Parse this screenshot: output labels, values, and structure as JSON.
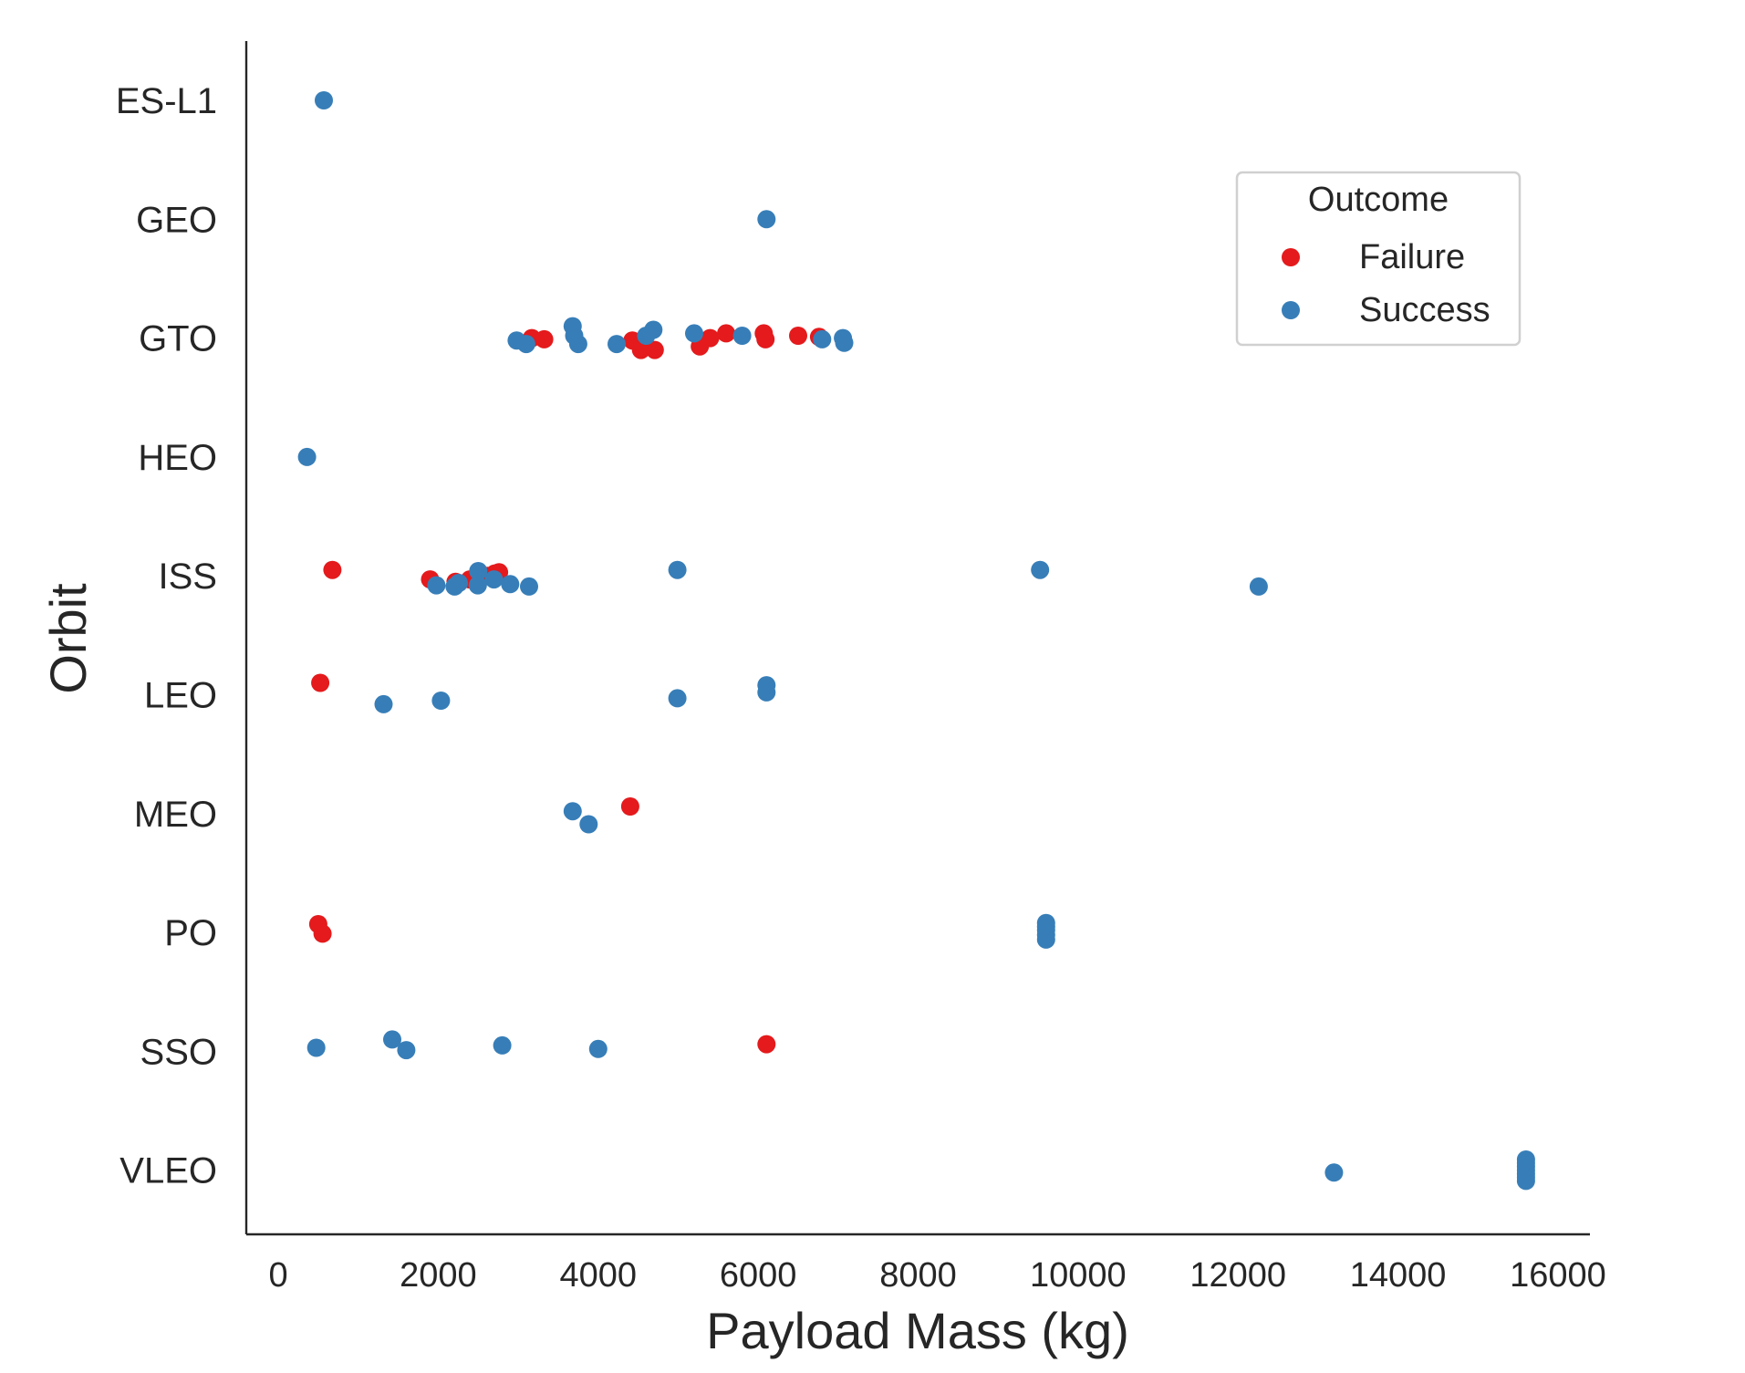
{
  "chart_data": {
    "type": "scatter",
    "xlabel": "Payload Mass (kg)",
    "ylabel": "Orbit",
    "xlim": [
      -400,
      16400
    ],
    "x_ticks": [
      0,
      2000,
      4000,
      6000,
      8000,
      10000,
      12000,
      14000,
      16000
    ],
    "categories": [
      "ES-L1",
      "GEO",
      "GTO",
      "HEO",
      "ISS",
      "LEO",
      "MEO",
      "PO",
      "SSO",
      "VLEO"
    ],
    "grid": false,
    "legend": {
      "title": "Outcome",
      "placement": "top-right",
      "entries": [
        {
          "label": "Failure",
          "color": "#e41a1c"
        },
        {
          "label": "Success",
          "color": "#377eb8"
        }
      ]
    },
    "series": [
      {
        "name": "Failure",
        "color": "#e41a1c",
        "points": [
          {
            "x": 3170,
            "y": "GTO",
            "jitter": 0.0
          },
          {
            "x": 3325,
            "y": "GTO",
            "jitter": 0.01
          },
          {
            "x": 4428,
            "y": "GTO",
            "jitter": 0.02
          },
          {
            "x": 4535,
            "y": "GTO",
            "jitter": 0.1
          },
          {
            "x": 4707,
            "y": "GTO",
            "jitter": 0.1
          },
          {
            "x": 5271,
            "y": "GTO",
            "jitter": 0.07
          },
          {
            "x": 5400,
            "y": "GTO",
            "jitter": 0.0
          },
          {
            "x": 5600,
            "y": "GTO",
            "jitter": -0.04
          },
          {
            "x": 6070,
            "y": "GTO",
            "jitter": -0.04
          },
          {
            "x": 6092,
            "y": "GTO",
            "jitter": 0.01
          },
          {
            "x": 6500,
            "y": "GTO",
            "jitter": -0.02
          },
          {
            "x": 6761,
            "y": "GTO",
            "jitter": -0.01
          },
          {
            "x": 677,
            "y": "ISS",
            "jitter": -0.05
          },
          {
            "x": 1898,
            "y": "ISS",
            "jitter": 0.03
          },
          {
            "x": 2216,
            "y": "ISS",
            "jitter": 0.05
          },
          {
            "x": 2395,
            "y": "ISS",
            "jitter": 0.03
          },
          {
            "x": 2490,
            "y": "ISS",
            "jitter": 0.07
          },
          {
            "x": 2617,
            "y": "ISS",
            "jitter": 0.0
          },
          {
            "x": 2708,
            "y": "ISS",
            "jitter": -0.02
          },
          {
            "x": 2760,
            "y": "ISS",
            "jitter": -0.03
          },
          {
            "x": 525,
            "y": "LEO",
            "jitter": -0.1
          },
          {
            "x": 4400,
            "y": "MEO",
            "jitter": -0.06
          },
          {
            "x": 500,
            "y": "PO",
            "jitter": -0.07
          },
          {
            "x": 553,
            "y": "PO",
            "jitter": 0.01
          },
          {
            "x": 6104,
            "y": "SSO",
            "jitter": -0.06
          }
        ]
      },
      {
        "name": "Success",
        "color": "#377eb8",
        "points": [
          {
            "x": 570,
            "y": "ES-L1",
            "jitter": 0.0
          },
          {
            "x": 6104,
            "y": "GEO",
            "jitter": 0.0
          },
          {
            "x": 2980,
            "y": "GTO",
            "jitter": 0.02
          },
          {
            "x": 3100,
            "y": "GTO",
            "jitter": 0.05
          },
          {
            "x": 3681,
            "y": "GTO",
            "jitter": -0.1
          },
          {
            "x": 3700,
            "y": "GTO",
            "jitter": -0.02
          },
          {
            "x": 3750,
            "y": "GTO",
            "jitter": 0.05
          },
          {
            "x": 4230,
            "y": "GTO",
            "jitter": 0.05
          },
          {
            "x": 4600,
            "y": "GTO",
            "jitter": -0.02
          },
          {
            "x": 4690,
            "y": "GTO",
            "jitter": -0.07
          },
          {
            "x": 5200,
            "y": "GTO",
            "jitter": -0.04
          },
          {
            "x": 5800,
            "y": "GTO",
            "jitter": -0.02
          },
          {
            "x": 6800,
            "y": "GTO",
            "jitter": 0.01
          },
          {
            "x": 7060,
            "y": "GTO",
            "jitter": 0.0
          },
          {
            "x": 7076,
            "y": "GTO",
            "jitter": 0.04
          },
          {
            "x": 360,
            "y": "HEO",
            "jitter": 0.0
          },
          {
            "x": 1977,
            "y": "ISS",
            "jitter": 0.08
          },
          {
            "x": 2205,
            "y": "ISS",
            "jitter": 0.09
          },
          {
            "x": 2257,
            "y": "ISS",
            "jitter": 0.06
          },
          {
            "x": 2500,
            "y": "ISS",
            "jitter": -0.04
          },
          {
            "x": 2495,
            "y": "ISS",
            "jitter": 0.08
          },
          {
            "x": 2697,
            "y": "ISS",
            "jitter": 0.03
          },
          {
            "x": 2900,
            "y": "ISS",
            "jitter": 0.07
          },
          {
            "x": 3136,
            "y": "ISS",
            "jitter": 0.09
          },
          {
            "x": 4990,
            "y": "ISS",
            "jitter": -0.05
          },
          {
            "x": 9525,
            "y": "ISS",
            "jitter": -0.05
          },
          {
            "x": 12259,
            "y": "ISS",
            "jitter": 0.09
          },
          {
            "x": 1316,
            "y": "LEO",
            "jitter": 0.08
          },
          {
            "x": 2034,
            "y": "LEO",
            "jitter": 0.05
          },
          {
            "x": 4990,
            "y": "LEO",
            "jitter": 0.03
          },
          {
            "x": 6104,
            "y": "LEO",
            "jitter": -0.08
          },
          {
            "x": 6104,
            "y": "LEO",
            "jitter": -0.02
          },
          {
            "x": 3681,
            "y": "MEO",
            "jitter": -0.02
          },
          {
            "x": 3880,
            "y": "MEO",
            "jitter": 0.09
          },
          {
            "x": 9600,
            "y": "PO",
            "jitter": -0.08
          },
          {
            "x": 9600,
            "y": "PO",
            "jitter": -0.05
          },
          {
            "x": 9600,
            "y": "PO",
            "jitter": -0.02
          },
          {
            "x": 9600,
            "y": "PO",
            "jitter": 0.02
          },
          {
            "x": 9600,
            "y": "PO",
            "jitter": 0.06
          },
          {
            "x": 475,
            "y": "SSO",
            "jitter": -0.03
          },
          {
            "x": 1425,
            "y": "SSO",
            "jitter": -0.1
          },
          {
            "x": 1600,
            "y": "SSO",
            "jitter": -0.01
          },
          {
            "x": 2800,
            "y": "SSO",
            "jitter": -0.05
          },
          {
            "x": 4000,
            "y": "SSO",
            "jitter": -0.02
          },
          {
            "x": 13200,
            "y": "VLEO",
            "jitter": 0.02
          },
          {
            "x": 15600,
            "y": "VLEO",
            "jitter": -0.09
          },
          {
            "x": 15600,
            "y": "VLEO",
            "jitter": -0.06
          },
          {
            "x": 15600,
            "y": "VLEO",
            "jitter": -0.03
          },
          {
            "x": 15600,
            "y": "VLEO",
            "jitter": 0.0
          },
          {
            "x": 15600,
            "y": "VLEO",
            "jitter": 0.03
          },
          {
            "x": 15600,
            "y": "VLEO",
            "jitter": 0.06
          },
          {
            "x": 15600,
            "y": "VLEO",
            "jitter": 0.09
          }
        ]
      }
    ]
  }
}
